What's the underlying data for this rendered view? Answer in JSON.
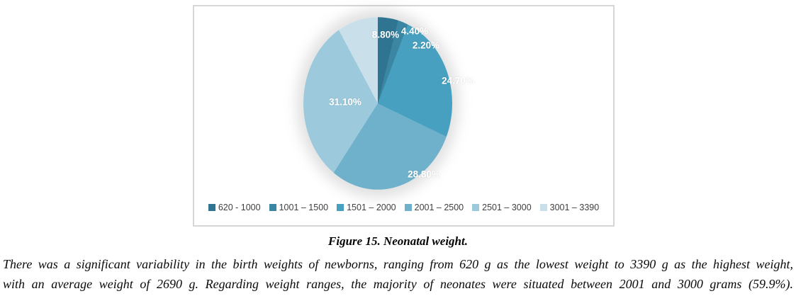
{
  "figure": {
    "caption": "Figure 15. Neonatal weight.",
    "description_lines": [
      "There was a significant variability in the birth weights of newborns, ranging from 620 g as the lowest weight to 3390 g as the highest weight,",
      "with an average weight of 2690 g. Regarding weight ranges, the majority of neonates were situated between 2001 and 3000 grams (59.9%)."
    ]
  },
  "chart_data": {
    "type": "pie",
    "title": "",
    "categories": [
      "620 - 1000",
      "1001 – 1500",
      "1501 – 2000",
      "2001 – 2500",
      "2501 – 3000",
      "3001 – 3390"
    ],
    "values": [
      4.4,
      2.2,
      24.7,
      28.8,
      31.1,
      8.8
    ],
    "slice_labels": [
      "4.40%",
      "2.20%",
      "24.70%",
      "28.80%",
      "31.10%",
      "8.80%"
    ],
    "colors": [
      "#2F7592",
      "#3A86A3",
      "#47A0BF",
      "#6FB1CB",
      "#9CC9DC",
      "#C9DFEA"
    ],
    "label_color": "#ffffff",
    "legend_position": "bottom",
    "start_angle_deg": 0,
    "direction": "clockwise",
    "units": "grams"
  }
}
